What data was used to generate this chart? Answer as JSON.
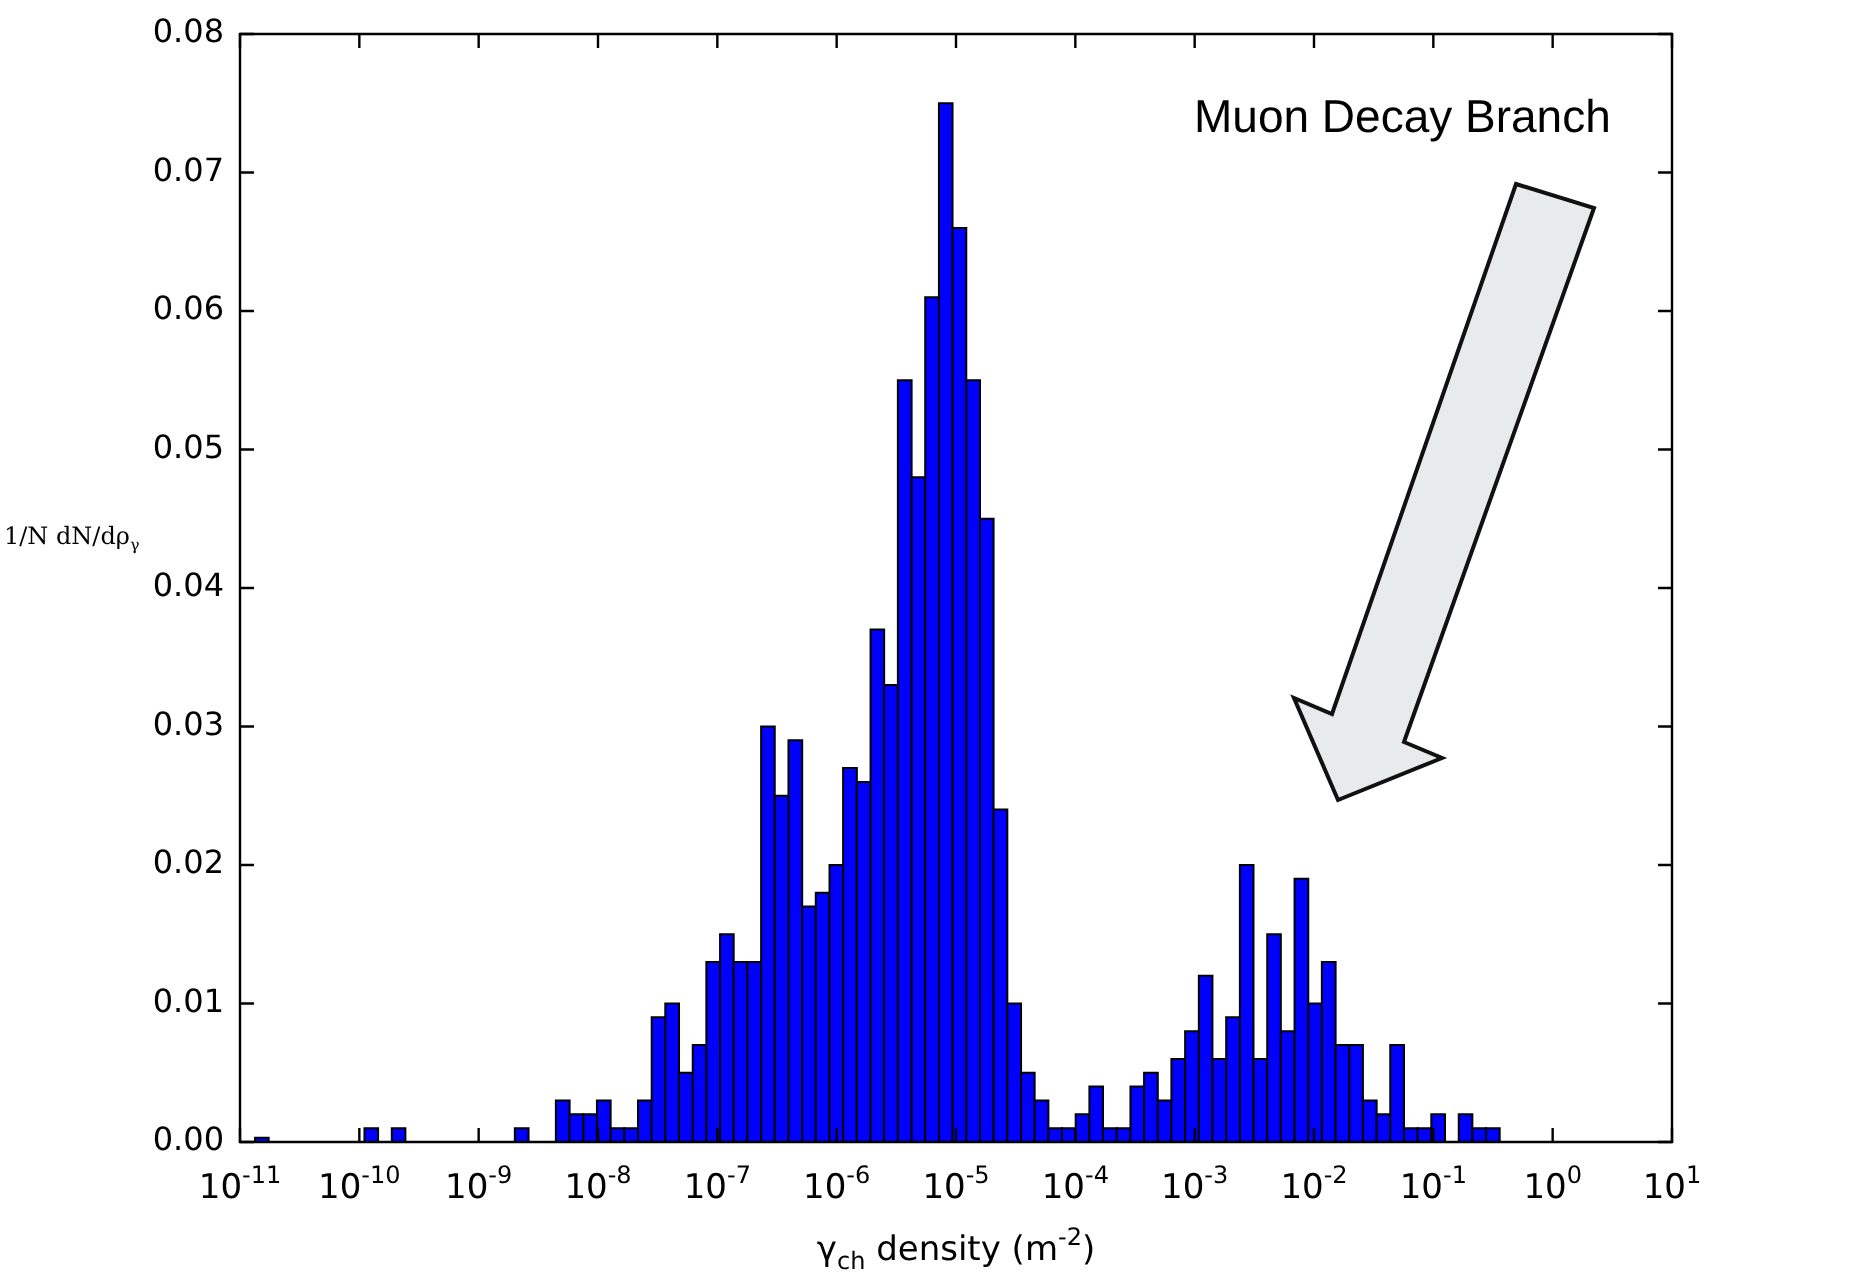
{
  "chart_data": {
    "type": "histogram",
    "xlabel": "γ$_{ch}$ density (m$^{-2}$)",
    "ylabel": "1/N dN/dρ$_{γ}$",
    "annotations": [
      "Muon Decay Branch"
    ],
    "color": "#0000ff",
    "log": "x",
    "bins": [
      1.026e-11,
      1.337e-11,
      1.738e-11,
      2.265e-11,
      2.944e-11,
      3.837e-11,
      5e-11,
      6.501e-11,
      8.47e-11,
      1.104e-10,
      1.436e-10,
      1.871e-10,
      2.432e-10,
      3.17e-10,
      4.13e-10,
      5.37e-10,
      7e-10,
      9.12e-10,
      1.186e-09,
      1.545e-09,
      2.009e-09,
      2.618e-09,
      3.412e-09,
      4.436e-09,
      5.781e-09,
      7.534e-09,
      9.795e-09,
      1.276e-08,
      1.66e-08,
      2.163e-08,
      2.818e-08,
      3.664e-08,
      4.775e-08,
      6.223e-08,
      8.091e-08,
      1.054e-07,
      1.371e-07,
      1.786e-07,
      2.328e-07,
      3.027e-07,
      3.945e-07,
      5.14e-07,
      6.683e-07,
      8.71e-07,
      1.132e-06,
      1.476e-06,
      1.923e-06,
      2.5e-06,
      3.258e-06,
      4.246e-06,
      5.521e-06,
      7.194e-06,
      9.354e-06,
      1.219e-05,
      1.589e-05,
      2.065e-05,
      2.692e-05,
      3.508e-05,
      4.56e-05,
      5.943e-05,
      7.727e-05,
      0.0001007,
      0.0001312,
      0.0001706,
      0.0002223,
      0.0002897,
      0.0003767,
      0.0004909,
      0.0006383,
      0.0008318,
      0.001084,
      0.001409,
      0.001837,
      0.002393,
      0.003112,
      0.004055,
      0.005272,
      0.006871,
      0.008954,
      0.01164,
      0.01517,
      0.01977,
      0.0257,
      0.0335,
      0.04355,
      0.05675,
      0.07396,
      0.09616,
      0.1253,
      0.1633,
      0.2123,
      0.2767,
      0.3597
    ],
    "values": [
      0,
      0.0003,
      0,
      0,
      0,
      0,
      0,
      0,
      0,
      0.001,
      0,
      0.001,
      0,
      0,
      0,
      0,
      0,
      0,
      0,
      0,
      0.001,
      0,
      0,
      0.003,
      0.002,
      0.002,
      0.003,
      0.001,
      0.001,
      0.003,
      0.009,
      0.01,
      0.005,
      0.007,
      0.013,
      0.015,
      0.013,
      0.013,
      0.03,
      0.025,
      0.029,
      0.017,
      0.018,
      0.02,
      0.027,
      0.026,
      0.037,
      0.033,
      0.055,
      0.048,
      0.061,
      0.075,
      0.066,
      0.055,
      0.045,
      0.024,
      0.01,
      0.005,
      0.003,
      0.001,
      0.001,
      0.002,
      0.004,
      0.001,
      0.001,
      0.004,
      0.005,
      0.003,
      0.006,
      0.008,
      0.012,
      0.006,
      0.009,
      0.02,
      0.006,
      0.015,
      0.008,
      0.019,
      0.01,
      0.013,
      0.007,
      0.007,
      0.003,
      0.002,
      0.007,
      0.001,
      0.001,
      0.002,
      0,
      0.002,
      0.001,
      0.001
    ],
    "xlim": [
      1e-11,
      10
    ],
    "xticks": [
      {
        "value": 1e-11,
        "label": "10$^{-11}$"
      },
      {
        "value": 1e-10,
        "label": "10$^{-10}$"
      },
      {
        "value": 1e-09,
        "label": "10$^{-9}$"
      },
      {
        "value": 1e-08,
        "label": "10$^{-8}$"
      },
      {
        "value": 1e-07,
        "label": "10$^{-7}$"
      },
      {
        "value": 1e-06,
        "label": "10$^{-6}$"
      },
      {
        "value": 1e-05,
        "label": "10$^{-5}$"
      },
      {
        "value": 0.0001,
        "label": "10$^{-4}$"
      },
      {
        "value": 0.001,
        "label": "10$^{-3}$"
      },
      {
        "value": 0.01,
        "label": "10$^{-2}$"
      },
      {
        "value": 0.1,
        "label": "10$^{-1}$"
      },
      {
        "value": 1,
        "label": "10$^{0}$"
      },
      {
        "value": 10,
        "label": "10$^{1}$"
      }
    ],
    "ylim": [
      0,
      0.08
    ],
    "yticks": [
      {
        "value": 0,
        "label": "0.00"
      },
      {
        "value": 0.01,
        "label": "0.01"
      },
      {
        "value": 0.02,
        "label": "0.02"
      },
      {
        "value": 0.03,
        "label": "0.03"
      },
      {
        "value": 0.04,
        "label": "0.04"
      },
      {
        "value": 0.05,
        "label": "0.05"
      },
      {
        "value": 0.06,
        "label": "0.06"
      },
      {
        "value": 0.07,
        "label": "0.07"
      },
      {
        "value": 0.08,
        "label": "0.08"
      }
    ]
  }
}
